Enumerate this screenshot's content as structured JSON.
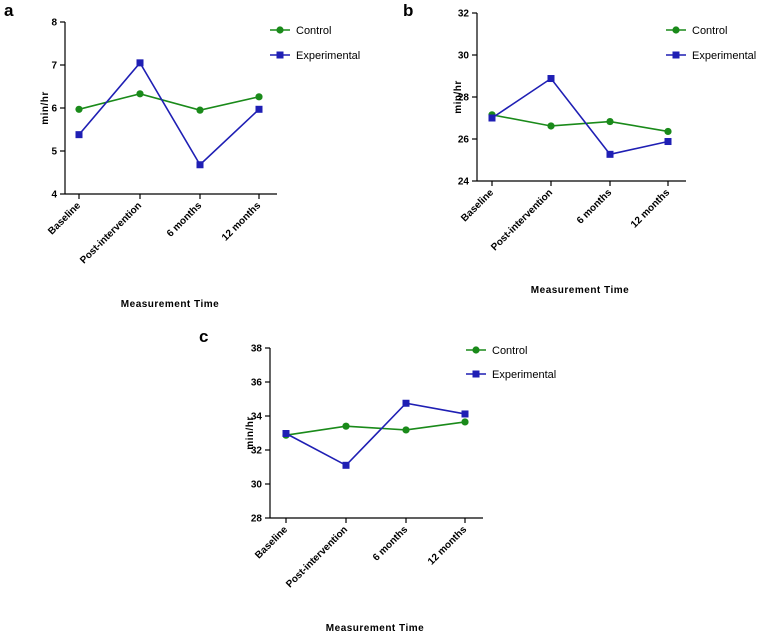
{
  "chart_data": [
    {
      "panel": "a",
      "type": "line",
      "categories": [
        "Baseline",
        "Post-intervention",
        "6 months",
        "12 months"
      ],
      "series": [
        {
          "name": "Control",
          "color": "#1a8a1a",
          "marker": "circle",
          "values": [
            5.97,
            6.33,
            5.95,
            6.26
          ]
        },
        {
          "name": "Experimental",
          "color": "#1f1fb4",
          "marker": "square",
          "values": [
            5.38,
            7.05,
            4.68,
            5.97
          ]
        }
      ],
      "xlabel": "Measurement Time",
      "ylabel": "min/hr",
      "ylim": [
        4,
        8
      ],
      "yticks": [
        4,
        5,
        6,
        7,
        8
      ],
      "legend": "top-right"
    },
    {
      "panel": "b",
      "type": "line",
      "categories": [
        "Baseline",
        "Post-intervention",
        "6 months",
        "12 months"
      ],
      "series": [
        {
          "name": "Control",
          "color": "#1a8a1a",
          "marker": "circle",
          "values": [
            27.15,
            26.62,
            26.83,
            26.36
          ]
        },
        {
          "name": "Experimental",
          "color": "#1f1fb4",
          "marker": "square",
          "values": [
            27.0,
            28.88,
            25.27,
            25.88
          ]
        }
      ],
      "xlabel": "Measurement Time",
      "ylabel": "min/hr",
      "ylim": [
        24,
        32
      ],
      "yticks": [
        24,
        26,
        28,
        30,
        32
      ],
      "legend": "top-right"
    },
    {
      "panel": "c",
      "type": "line",
      "categories": [
        "Baseline",
        "Post-intervention",
        "6 months",
        "12 months"
      ],
      "series": [
        {
          "name": "Control",
          "color": "#1a8a1a",
          "marker": "circle",
          "values": [
            32.87,
            33.4,
            33.18,
            33.65
          ]
        },
        {
          "name": "Experimental",
          "color": "#1f1fb4",
          "marker": "square",
          "values": [
            32.97,
            31.1,
            34.75,
            34.12
          ]
        }
      ],
      "xlabel": "Measurement Time",
      "ylabel": "min/hr",
      "ylim": [
        28,
        38
      ],
      "yticks": [
        28,
        30,
        32,
        34,
        36,
        38
      ],
      "legend": "top-right"
    }
  ]
}
